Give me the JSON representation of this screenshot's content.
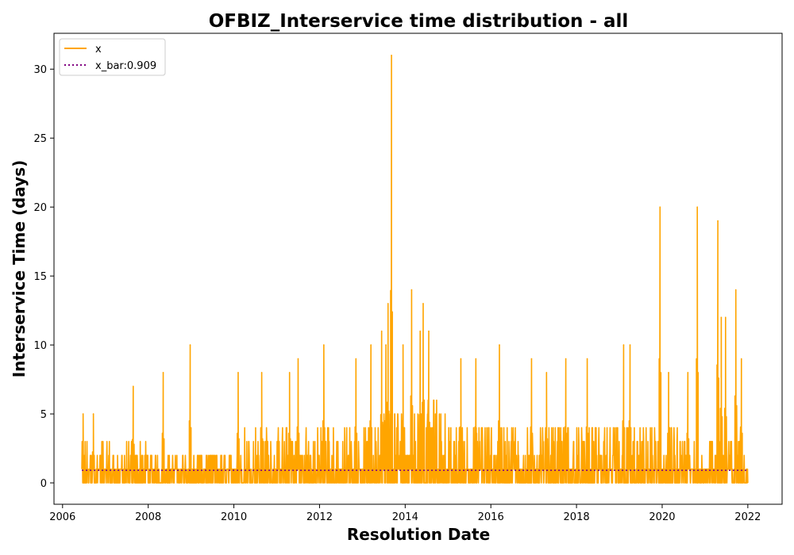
{
  "chart_data": {
    "type": "line",
    "title": "OFBIZ_Interservice time distribution - all",
    "xlabel": "Resolution Date",
    "ylabel": "Interservice Time (days)",
    "x_axis_kind": "date (year)",
    "xlim": [
      2005.8,
      2022.8
    ],
    "ylim": [
      -1.55,
      32.6
    ],
    "x_ticks": [
      2006,
      2008,
      2010,
      2012,
      2014,
      2016,
      2018,
      2020,
      2022
    ],
    "y_ticks": [
      0,
      5,
      10,
      15,
      20,
      25,
      30
    ],
    "grid": false,
    "legend_position": "top-left",
    "series": [
      {
        "name": "x",
        "color": "#ffa500",
        "style": "solid",
        "date_range": [
          2006.45,
          2022.0
        ],
        "baseline": 0,
        "notable_peaks": [
          {
            "x": 2006.48,
            "y": 5
          },
          {
            "x": 2006.72,
            "y": 5
          },
          {
            "x": 2007.65,
            "y": 7
          },
          {
            "x": 2008.35,
            "y": 8
          },
          {
            "x": 2008.98,
            "y": 10
          },
          {
            "x": 2010.1,
            "y": 8
          },
          {
            "x": 2010.65,
            "y": 8
          },
          {
            "x": 2011.3,
            "y": 8
          },
          {
            "x": 2011.5,
            "y": 9
          },
          {
            "x": 2012.1,
            "y": 10
          },
          {
            "x": 2012.85,
            "y": 9
          },
          {
            "x": 2013.2,
            "y": 10
          },
          {
            "x": 2013.45,
            "y": 11
          },
          {
            "x": 2013.55,
            "y": 10
          },
          {
            "x": 2013.6,
            "y": 13
          },
          {
            "x": 2013.68,
            "y": 31
          },
          {
            "x": 2013.95,
            "y": 10
          },
          {
            "x": 2014.15,
            "y": 14
          },
          {
            "x": 2014.35,
            "y": 11
          },
          {
            "x": 2014.42,
            "y": 13
          },
          {
            "x": 2014.55,
            "y": 11
          },
          {
            "x": 2015.3,
            "y": 9
          },
          {
            "x": 2015.65,
            "y": 9
          },
          {
            "x": 2016.2,
            "y": 10
          },
          {
            "x": 2016.95,
            "y": 9
          },
          {
            "x": 2017.3,
            "y": 8
          },
          {
            "x": 2017.75,
            "y": 9
          },
          {
            "x": 2018.25,
            "y": 9
          },
          {
            "x": 2019.1,
            "y": 10
          },
          {
            "x": 2019.25,
            "y": 10
          },
          {
            "x": 2019.95,
            "y": 20
          },
          {
            "x": 2020.15,
            "y": 8
          },
          {
            "x": 2020.6,
            "y": 8
          },
          {
            "x": 2020.82,
            "y": 20
          },
          {
            "x": 2021.3,
            "y": 19
          },
          {
            "x": 2021.38,
            "y": 12
          },
          {
            "x": 2021.48,
            "y": 12
          },
          {
            "x": 2021.72,
            "y": 14
          },
          {
            "x": 2021.85,
            "y": 9
          }
        ]
      },
      {
        "name": "x_bar:0.909",
        "color": "#800080",
        "style": "dotted",
        "x": [
          2006.45,
          2022.0
        ],
        "y": [
          0.909,
          0.909
        ]
      }
    ]
  }
}
